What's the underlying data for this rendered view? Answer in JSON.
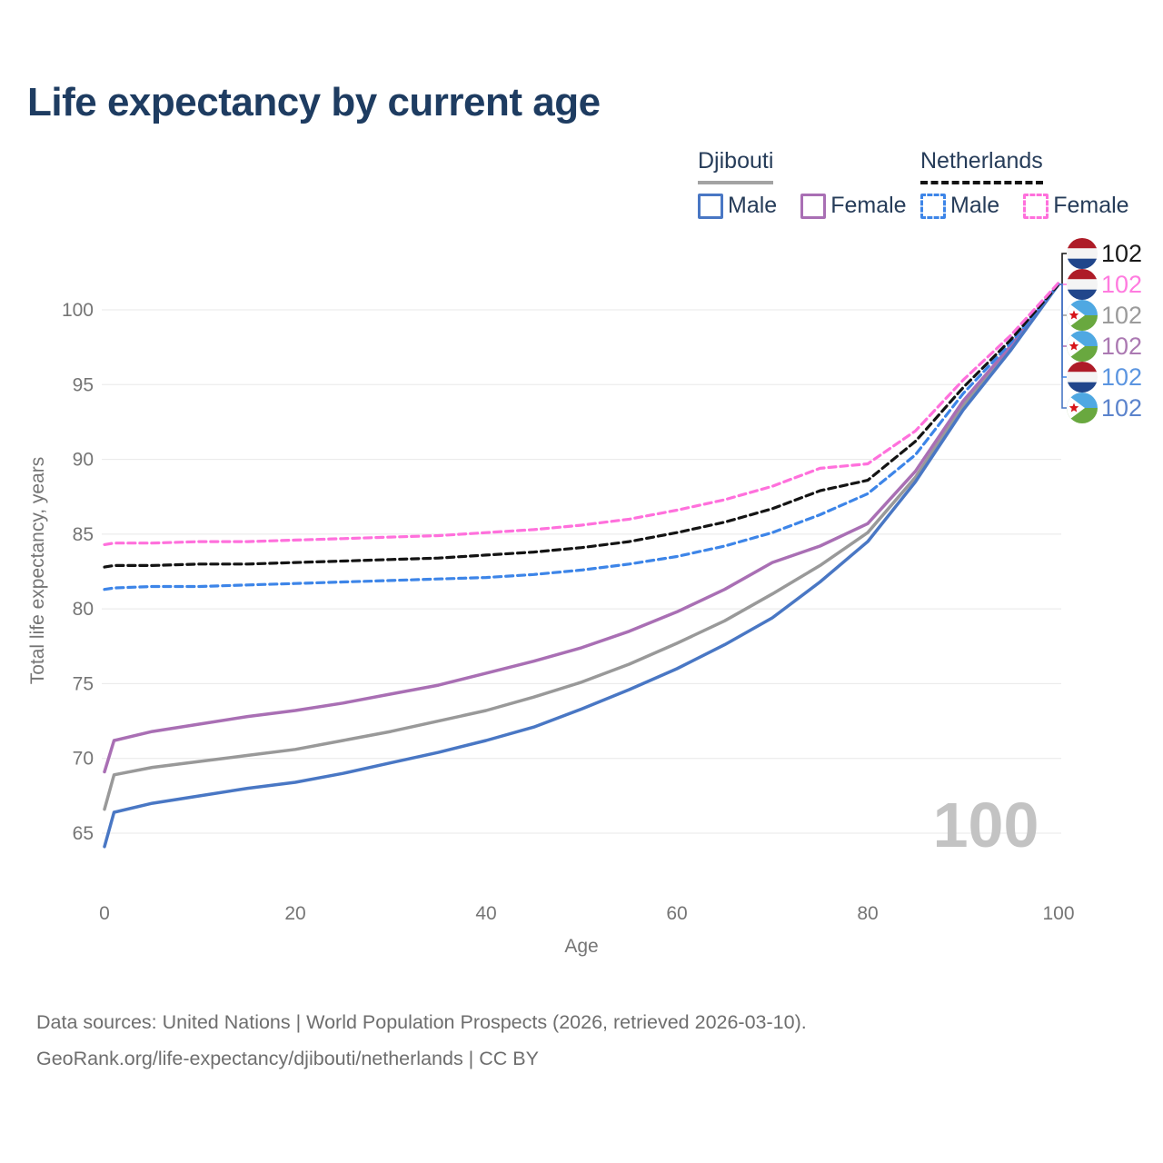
{
  "header": {
    "title": "Life expectancy by current age"
  },
  "legend": {
    "groups": [
      {
        "label": "Djibouti",
        "underline": "solid",
        "items": [
          {
            "label": "Male",
            "color": "#4977c4",
            "dashed": false
          },
          {
            "label": "Female",
            "color": "#a96fb4",
            "dashed": false
          }
        ]
      },
      {
        "label": "Netherlands",
        "underline": "dashed",
        "items": [
          {
            "label": "Male",
            "color": "#3d85e8",
            "dashed": true
          },
          {
            "label": "Female",
            "color": "#ff70dc",
            "dashed": true
          }
        ]
      }
    ]
  },
  "chart_data": {
    "type": "line",
    "title": "Life expectancy by current age",
    "xlabel": "Age",
    "ylabel": "Total life expectancy, years",
    "x_ticks": [
      0,
      20,
      40,
      60,
      80,
      100
    ],
    "y_ticks": [
      65,
      70,
      75,
      80,
      85,
      90,
      95,
      100
    ],
    "xlim": [
      0,
      100
    ],
    "ylim": [
      63.5,
      103
    ],
    "grid": "horizontal",
    "legend_position": "top-right",
    "age_counter": "100",
    "x": [
      0,
      1,
      5,
      10,
      15,
      20,
      25,
      30,
      35,
      40,
      45,
      50,
      55,
      60,
      65,
      70,
      75,
      80,
      85,
      90,
      95,
      100
    ],
    "series": [
      {
        "id": "dj_total",
        "name": "Djibouti",
        "color": "#999999",
        "dashed": false,
        "values": [
          66.6,
          68.9,
          69.4,
          69.8,
          70.2,
          70.6,
          71.2,
          71.8,
          72.5,
          73.2,
          74.1,
          75.1,
          76.3,
          77.7,
          79.2,
          81.0,
          82.9,
          85.1,
          88.8,
          93.6,
          97.5,
          101.7
        ]
      },
      {
        "id": "dj_female",
        "name": "Djibouti Female",
        "color": "#a96fb4",
        "dashed": false,
        "values": [
          69.1,
          71.2,
          71.8,
          72.3,
          72.8,
          73.2,
          73.7,
          74.3,
          74.9,
          75.7,
          76.5,
          77.4,
          78.5,
          79.8,
          81.3,
          83.1,
          84.2,
          85.7,
          89.2,
          93.9,
          97.6,
          101.7
        ]
      },
      {
        "id": "dj_male",
        "name": "Djibouti Male",
        "color": "#4977c4",
        "dashed": false,
        "values": [
          64.1,
          66.4,
          67.0,
          67.5,
          68.0,
          68.4,
          69.0,
          69.7,
          70.4,
          71.2,
          72.1,
          73.3,
          74.6,
          76.0,
          77.6,
          79.4,
          81.8,
          84.5,
          88.5,
          93.3,
          97.3,
          101.7
        ]
      },
      {
        "id": "nl_male",
        "name": "Netherlands Male",
        "color": "#3d85e8",
        "dashed": true,
        "values": [
          81.3,
          81.4,
          81.5,
          81.5,
          81.6,
          81.7,
          81.8,
          81.9,
          82.0,
          82.1,
          82.3,
          82.6,
          83.0,
          83.5,
          84.2,
          85.1,
          86.3,
          87.7,
          90.3,
          94.4,
          97.8,
          101.7
        ]
      },
      {
        "id": "nl_total",
        "name": "Netherlands",
        "color": "#141414",
        "dashed": true,
        "values": [
          82.8,
          82.9,
          82.9,
          83.0,
          83.0,
          83.1,
          83.2,
          83.3,
          83.4,
          83.6,
          83.8,
          84.1,
          84.5,
          85.1,
          85.8,
          86.7,
          87.9,
          88.6,
          91.2,
          94.8,
          98.0,
          101.7
        ]
      },
      {
        "id": "nl_female",
        "name": "Netherlands Female",
        "color": "#ff70dc",
        "dashed": true,
        "values": [
          84.3,
          84.4,
          84.4,
          84.5,
          84.5,
          84.6,
          84.7,
          84.8,
          84.9,
          85.1,
          85.3,
          85.6,
          86.0,
          86.6,
          87.3,
          88.2,
          89.4,
          89.7,
          91.9,
          95.3,
          98.3,
          101.8
        ]
      }
    ],
    "end_labels": [
      {
        "series": "nl_total",
        "flag": "netherlands",
        "text": "102",
        "text_color": "#1a1a1a"
      },
      {
        "series": "nl_female",
        "flag": "netherlands",
        "text": "102",
        "text_color": "#ff7bdf"
      },
      {
        "series": "dj_total",
        "flag": "djibouti",
        "text": "102",
        "text_color": "#9b9b9b"
      },
      {
        "series": "dj_female",
        "flag": "djibouti",
        "text": "102",
        "text_color": "#ab79b2"
      },
      {
        "series": "nl_male",
        "flag": "netherlands",
        "text": "102",
        "text_color": "#5b95e0"
      },
      {
        "series": "dj_male",
        "flag": "djibouti",
        "text": "102",
        "text_color": "#5b83cc"
      }
    ],
    "flag_colors": {
      "netherlands": {
        "top": "#AE1C28",
        "mid": "#f4f4f4",
        "bottom": "#21468B"
      },
      "djibouti": {
        "top": "#4fa8e2",
        "bottom": "#69a83f",
        "triangle": "#ffffff",
        "star": "#d7141a"
      }
    }
  },
  "footer": {
    "line1": "Data sources: United Nations | World Population Prospects (2026, retrieved 2026-03-10).",
    "line2": "GeoRank.org/life-expectancy/djibouti/netherlands | CC BY"
  }
}
